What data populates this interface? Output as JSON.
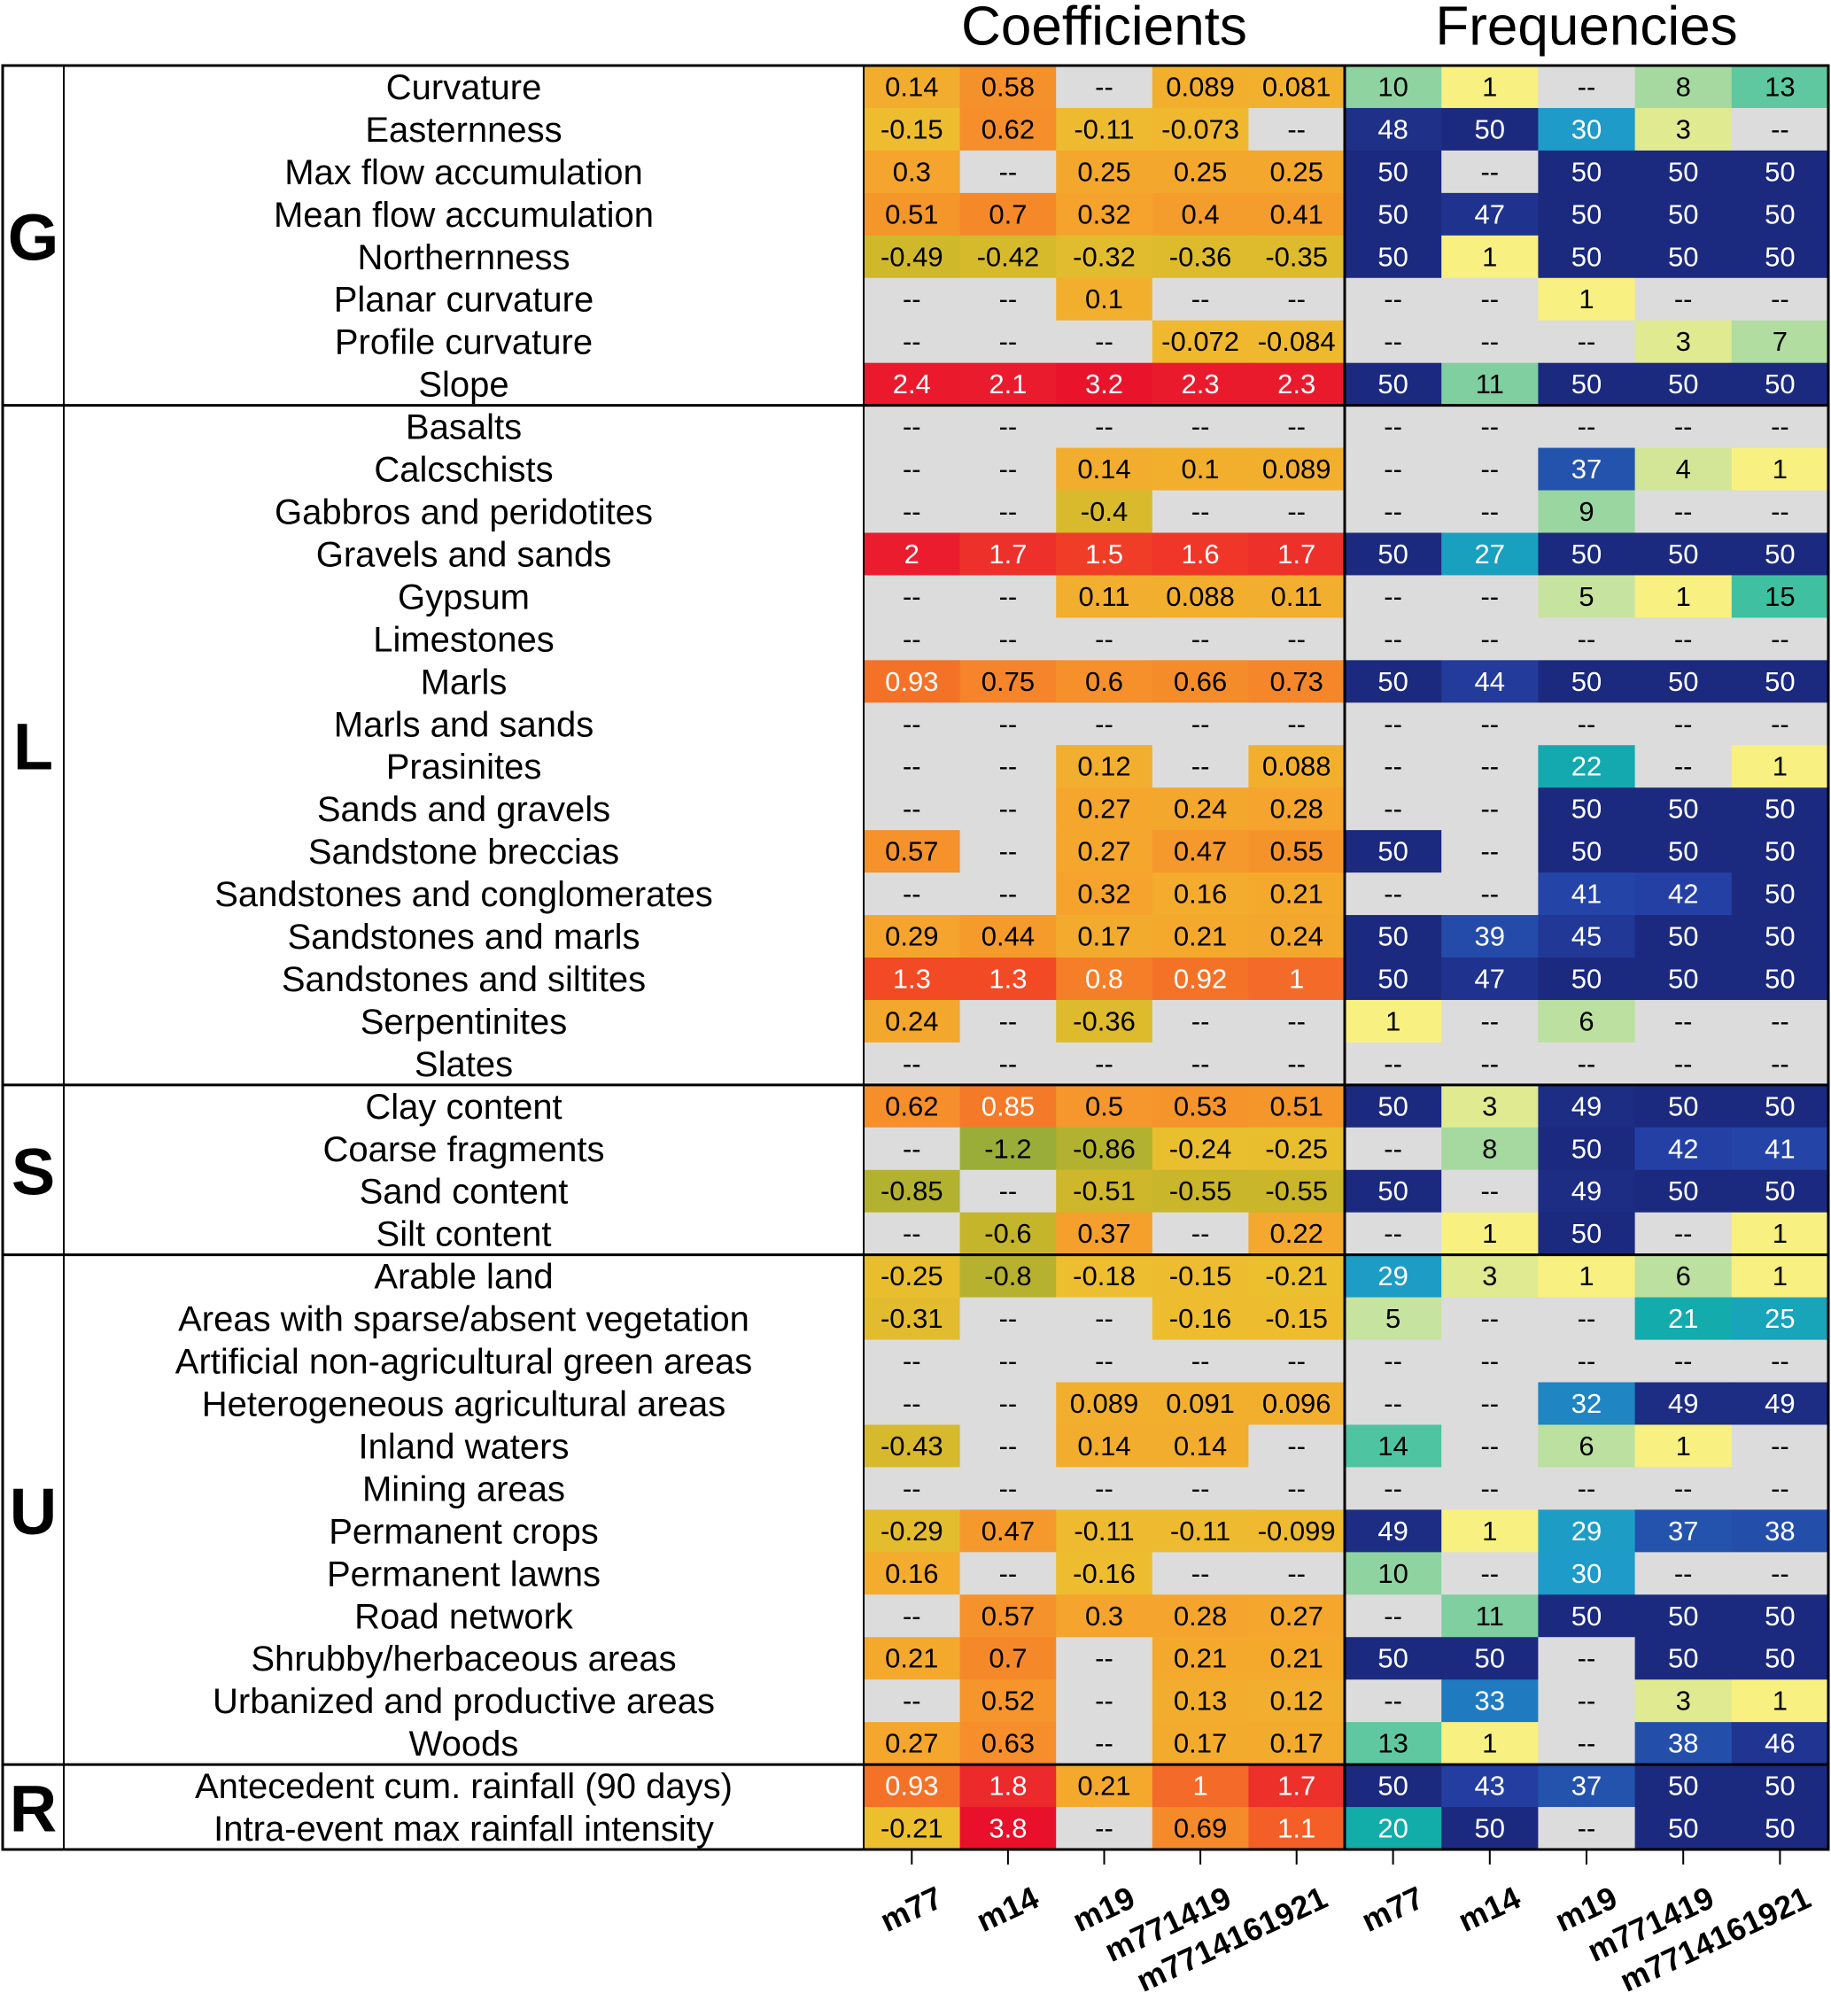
{
  "chart_data": {
    "type": "heatmap",
    "missing_label": "--",
    "panels": [
      {
        "title": "Coefficients",
        "columns": [
          "m77",
          "m14",
          "m19",
          "m771419",
          "m7714161921"
        ],
        "color_scale": [
          [
            -1.2,
            "#99ad38"
          ],
          [
            -0.6,
            "#c5b52a"
          ],
          [
            -0.2,
            "#edbf2f"
          ],
          [
            0.3,
            "#f5a42d"
          ],
          [
            0.7,
            "#f5892a"
          ],
          [
            1.3,
            "#f24a25"
          ],
          [
            2,
            "#ea1c2d"
          ],
          [
            3.8,
            "#e8102a"
          ]
        ]
      },
      {
        "title": "Frequencies",
        "columns": [
          "m77",
          "m14",
          "m19",
          "m771419",
          "m7714161921"
        ],
        "color_scale": [
          [
            1,
            "#f8f080"
          ],
          [
            5,
            "#c7e3a0"
          ],
          [
            10,
            "#8fd3a0"
          ],
          [
            15,
            "#3fc0a0"
          ],
          [
            20,
            "#12ada9"
          ],
          [
            30,
            "#1e9bc8"
          ],
          [
            33,
            "#1f7ac0"
          ],
          [
            37,
            "#2353ad"
          ],
          [
            42,
            "#2540a5"
          ],
          [
            50,
            "#1b2a7e"
          ]
        ]
      }
    ],
    "groups": [
      {
        "label": "G",
        "rows": [
          {
            "name": "Curvature",
            "values": [
              [
                0.14,
                0.58,
                null,
                0.089,
                0.081
              ],
              [
                10,
                1,
                null,
                8,
                13
              ]
            ]
          },
          {
            "name": "Easternness",
            "values": [
              [
                -0.15,
                0.62,
                -0.11,
                -0.073,
                null
              ],
              [
                48,
                50,
                30,
                3,
                null
              ]
            ]
          },
          {
            "name": "Max flow accumulation",
            "values": [
              [
                0.3,
                null,
                0.25,
                0.25,
                0.25
              ],
              [
                50,
                null,
                50,
                50,
                50
              ]
            ]
          },
          {
            "name": "Mean flow accumulation",
            "values": [
              [
                0.51,
                0.7,
                0.32,
                0.4,
                0.41
              ],
              [
                50,
                47,
                50,
                50,
                50
              ]
            ]
          },
          {
            "name": "Northernness",
            "values": [
              [
                -0.49,
                -0.42,
                -0.32,
                -0.36,
                -0.35
              ],
              [
                50,
                1,
                50,
                50,
                50
              ]
            ]
          },
          {
            "name": "Planar curvature",
            "values": [
              [
                null,
                null,
                0.1,
                null,
                null
              ],
              [
                null,
                null,
                1,
                null,
                null
              ]
            ]
          },
          {
            "name": "Profile curvature",
            "values": [
              [
                null,
                null,
                null,
                -0.072,
                -0.084
              ],
              [
                null,
                null,
                null,
                3,
                7
              ]
            ]
          },
          {
            "name": "Slope",
            "values": [
              [
                2.4,
                2.1,
                3.2,
                2.3,
                2.3
              ],
              [
                50,
                11,
                50,
                50,
                50
              ]
            ]
          }
        ]
      },
      {
        "label": "L",
        "rows": [
          {
            "name": "Basalts",
            "values": [
              [
                null,
                null,
                null,
                null,
                null
              ],
              [
                null,
                null,
                null,
                null,
                null
              ]
            ]
          },
          {
            "name": "Calcschists",
            "values": [
              [
                null,
                null,
                0.14,
                0.1,
                0.089
              ],
              [
                null,
                null,
                37,
                4,
                1
              ]
            ]
          },
          {
            "name": "Gabbros and peridotites",
            "values": [
              [
                null,
                null,
                -0.4,
                null,
                null
              ],
              [
                null,
                null,
                9,
                null,
                null
              ]
            ]
          },
          {
            "name": "Gravels and sands",
            "values": [
              [
                2,
                1.7,
                1.5,
                1.6,
                1.7
              ],
              [
                50,
                27,
                50,
                50,
                50
              ]
            ]
          },
          {
            "name": "Gypsum",
            "values": [
              [
                null,
                null,
                0.11,
                0.088,
                0.11
              ],
              [
                null,
                null,
                5,
                1,
                15
              ]
            ]
          },
          {
            "name": "Limestones",
            "values": [
              [
                null,
                null,
                null,
                null,
                null
              ],
              [
                null,
                null,
                null,
                null,
                null
              ]
            ]
          },
          {
            "name": "Marls",
            "values": [
              [
                0.93,
                0.75,
                0.6,
                0.66,
                0.73
              ],
              [
                50,
                44,
                50,
                50,
                50
              ]
            ]
          },
          {
            "name": "Marls and sands",
            "values": [
              [
                null,
                null,
                null,
                null,
                null
              ],
              [
                null,
                null,
                null,
                null,
                null
              ]
            ]
          },
          {
            "name": "Prasinites",
            "values": [
              [
                null,
                null,
                0.12,
                null,
                0.088
              ],
              [
                null,
                null,
                22,
                null,
                1
              ]
            ]
          },
          {
            "name": "Sands and gravels",
            "values": [
              [
                null,
                null,
                0.27,
                0.24,
                0.28
              ],
              [
                null,
                null,
                50,
                50,
                50
              ]
            ]
          },
          {
            "name": "Sandstone breccias",
            "values": [
              [
                0.57,
                null,
                0.27,
                0.47,
                0.55
              ],
              [
                50,
                null,
                50,
                50,
                50
              ]
            ]
          },
          {
            "name": "Sandstones and conglomerates",
            "values": [
              [
                null,
                null,
                0.32,
                0.16,
                0.21
              ],
              [
                null,
                null,
                41,
                42,
                50
              ]
            ]
          },
          {
            "name": "Sandstones and marls",
            "values": [
              [
                0.29,
                0.44,
                0.17,
                0.21,
                0.24
              ],
              [
                50,
                39,
                45,
                50,
                50
              ]
            ]
          },
          {
            "name": "Sandstones and siltites",
            "values": [
              [
                1.3,
                1.3,
                0.8,
                0.92,
                1
              ],
              [
                50,
                47,
                50,
                50,
                50
              ]
            ]
          },
          {
            "name": "Serpentinites",
            "values": [
              [
                0.24,
                null,
                -0.36,
                null,
                null
              ],
              [
                1,
                null,
                6,
                null,
                null
              ]
            ]
          },
          {
            "name": "Slates",
            "values": [
              [
                null,
                null,
                null,
                null,
                null
              ],
              [
                null,
                null,
                null,
                null,
                null
              ]
            ]
          }
        ]
      },
      {
        "label": "S",
        "rows": [
          {
            "name": "Clay content",
            "values": [
              [
                0.62,
                0.85,
                0.5,
                0.53,
                0.51
              ],
              [
                50,
                3,
                49,
                50,
                50
              ]
            ]
          },
          {
            "name": "Coarse fragments",
            "values": [
              [
                null,
                -1.2,
                -0.86,
                -0.24,
                -0.25
              ],
              [
                null,
                8,
                50,
                42,
                41
              ]
            ]
          },
          {
            "name": "Sand content",
            "values": [
              [
                -0.85,
                null,
                -0.51,
                -0.55,
                -0.55
              ],
              [
                50,
                null,
                49,
                50,
                50
              ]
            ]
          },
          {
            "name": "Silt content",
            "values": [
              [
                null,
                -0.6,
                0.37,
                null,
                0.22
              ],
              [
                null,
                1,
                50,
                null,
                1
              ]
            ]
          }
        ]
      },
      {
        "label": "U",
        "rows": [
          {
            "name": "Arable land",
            "values": [
              [
                -0.25,
                -0.8,
                -0.18,
                -0.15,
                -0.21
              ],
              [
                29,
                3,
                1,
                6,
                1
              ]
            ]
          },
          {
            "name": "Areas with sparse/absent vegetation",
            "values": [
              [
                -0.31,
                null,
                null,
                -0.16,
                -0.15
              ],
              [
                5,
                null,
                null,
                21,
                25
              ]
            ]
          },
          {
            "name": "Artificial non-agricultural green areas",
            "values": [
              [
                null,
                null,
                null,
                null,
                null
              ],
              [
                null,
                null,
                null,
                null,
                null
              ]
            ]
          },
          {
            "name": "Heterogeneous agricultural areas",
            "values": [
              [
                null,
                null,
                0.089,
                0.091,
                0.096
              ],
              [
                null,
                null,
                32,
                49,
                49
              ]
            ]
          },
          {
            "name": "Inland waters",
            "values": [
              [
                -0.43,
                null,
                0.14,
                0.14,
                null
              ],
              [
                14,
                null,
                6,
                1,
                null
              ]
            ]
          },
          {
            "name": "Mining areas",
            "values": [
              [
                null,
                null,
                null,
                null,
                null
              ],
              [
                null,
                null,
                null,
                null,
                null
              ]
            ]
          },
          {
            "name": "Permanent crops",
            "values": [
              [
                -0.29,
                0.47,
                -0.11,
                -0.11,
                -0.099
              ],
              [
                49,
                1,
                29,
                37,
                38
              ]
            ]
          },
          {
            "name": "Permanent lawns",
            "values": [
              [
                0.16,
                null,
                -0.16,
                null,
                null
              ],
              [
                10,
                null,
                30,
                null,
                null
              ]
            ]
          },
          {
            "name": "Road network",
            "values": [
              [
                null,
                0.57,
                0.3,
                0.28,
                0.27
              ],
              [
                null,
                11,
                50,
                50,
                50
              ]
            ]
          },
          {
            "name": "Shrubby/herbaceous areas",
            "values": [
              [
                0.21,
                0.7,
                null,
                0.21,
                0.21
              ],
              [
                50,
                50,
                null,
                50,
                50
              ]
            ]
          },
          {
            "name": "Urbanized and productive areas",
            "values": [
              [
                null,
                0.52,
                null,
                0.13,
                0.12
              ],
              [
                null,
                33,
                null,
                3,
                1
              ]
            ]
          },
          {
            "name": "Woods",
            "values": [
              [
                0.27,
                0.63,
                null,
                0.17,
                0.17
              ],
              [
                13,
                1,
                null,
                38,
                46
              ]
            ]
          }
        ]
      },
      {
        "label": "R",
        "rows": [
          {
            "name": "Antecedent cum. rainfall (90 days)",
            "values": [
              [
                0.93,
                1.8,
                0.21,
                1,
                1.7
              ],
              [
                50,
                43,
                37,
                50,
                50
              ]
            ]
          },
          {
            "name": "Intra-event max rainfall intensity",
            "values": [
              [
                -0.21,
                3.8,
                null,
                0.69,
                1.1
              ],
              [
                20,
                50,
                null,
                50,
                50
              ]
            ]
          }
        ]
      }
    ]
  }
}
